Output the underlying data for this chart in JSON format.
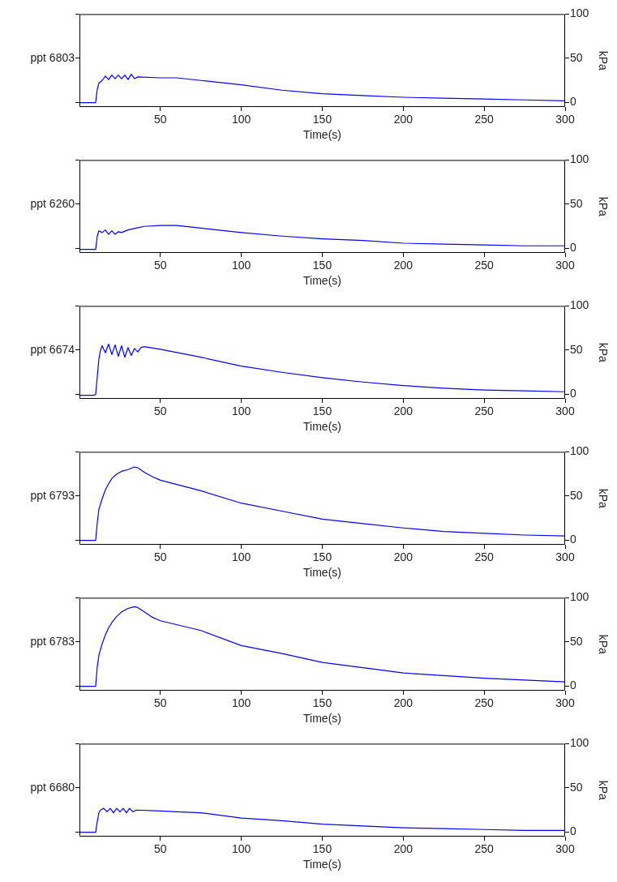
{
  "chart_data": [
    {
      "type": "line",
      "ylabel": "ppt 6803",
      "y2label": "kPa",
      "xlabel": "Time(s)",
      "xlim": [
        0,
        300
      ],
      "xticks": [
        50,
        100,
        150,
        200,
        250,
        300
      ],
      "y2lim": [
        -5,
        100
      ],
      "y2ticks": [
        0,
        50,
        100
      ],
      "marker": "none",
      "x": [
        0,
        9,
        10,
        11,
        12,
        14,
        16,
        18,
        20,
        22,
        24,
        26,
        28,
        30,
        32,
        34,
        36,
        50,
        60,
        75,
        100,
        125,
        150,
        175,
        200,
        225,
        250,
        275,
        300
      ],
      "series": [
        {
          "color": "#0000ff",
          "axis": "y2",
          "values": [
            0,
            0,
            0,
            15,
            22,
            25,
            30,
            26,
            31,
            27,
            31,
            27,
            31,
            26,
            32,
            27,
            29,
            28,
            28,
            25,
            20,
            14,
            10,
            8,
            6,
            5,
            4,
            3,
            2
          ]
        }
      ]
    },
    {
      "type": "line",
      "ylabel": "ppt 6260",
      "y2label": "kPa",
      "xlabel": "Time(s)",
      "xlim": [
        0,
        300
      ],
      "xticks": [
        50,
        100,
        150,
        200,
        250,
        300
      ],
      "y2lim": [
        -5,
        100
      ],
      "y2ticks": [
        0,
        50,
        100
      ],
      "marker": "none",
      "x": [
        0,
        9,
        10,
        11,
        12,
        14,
        16,
        18,
        20,
        22,
        24,
        26,
        30,
        35,
        40,
        50,
        60,
        75,
        100,
        125,
        150,
        175,
        200,
        225,
        250,
        275,
        300
      ],
      "series": [
        {
          "color": "#0000ff",
          "axis": "y2",
          "values": [
            -1,
            -1,
            -1,
            14,
            20,
            18,
            21,
            16,
            20,
            16,
            19,
            18,
            21,
            23,
            25,
            26,
            26,
            23,
            18,
            14,
            11,
            9,
            6,
            5,
            4,
            3,
            3
          ]
        }
      ]
    },
    {
      "type": "line",
      "ylabel": "ppt 6674",
      "y2label": "kPa",
      "xlabel": "Time(s)",
      "xlim": [
        0,
        300
      ],
      "xticks": [
        50,
        100,
        150,
        200,
        250,
        300
      ],
      "y2lim": [
        -5,
        100
      ],
      "y2ticks": [
        0,
        50,
        100
      ],
      "marker": "none",
      "x": [
        0,
        9,
        10,
        11,
        12,
        13,
        14,
        16,
        18,
        20,
        22,
        24,
        26,
        28,
        30,
        32,
        34,
        36,
        38,
        40,
        50,
        75,
        100,
        125,
        150,
        175,
        200,
        225,
        250,
        275,
        300
      ],
      "series": [
        {
          "color": "#0000ff",
          "axis": "y2",
          "values": [
            -1,
            -1,
            0,
            20,
            40,
            50,
            55,
            47,
            57,
            45,
            56,
            43,
            55,
            42,
            53,
            44,
            52,
            48,
            53,
            54,
            51,
            42,
            32,
            25,
            19,
            14,
            10,
            7,
            5,
            4,
            3
          ]
        }
      ]
    },
    {
      "type": "line",
      "ylabel": "ppt 6793",
      "y2label": "kPa",
      "xlabel": "Time(s)",
      "xlim": [
        0,
        300
      ],
      "xticks": [
        50,
        100,
        150,
        200,
        250,
        300
      ],
      "y2lim": [
        -5,
        100
      ],
      "y2ticks": [
        0,
        50,
        100
      ],
      "marker": "none",
      "x": [
        0,
        9,
        10,
        11,
        12,
        14,
        16,
        18,
        20,
        23,
        26,
        30,
        34,
        36,
        40,
        45,
        50,
        75,
        100,
        125,
        150,
        175,
        200,
        225,
        250,
        275,
        300
      ],
      "series": [
        {
          "color": "#0000ff",
          "axis": "y2",
          "values": [
            0,
            0,
            0,
            20,
            35,
            47,
            57,
            64,
            70,
            75,
            78,
            80,
            83,
            82,
            77,
            72,
            68,
            56,
            42,
            33,
            24,
            19,
            14,
            10,
            8,
            6,
            5
          ]
        }
      ]
    },
    {
      "type": "line",
      "ylabel": "ppt 6783",
      "y2label": "kPa",
      "xlabel": "Time(s)",
      "xlim": [
        0,
        300
      ],
      "xticks": [
        50,
        100,
        150,
        200,
        250,
        300
      ],
      "y2lim": [
        -5,
        100
      ],
      "y2ticks": [
        0,
        50,
        100
      ],
      "marker": "none",
      "x": [
        0,
        9,
        10,
        11,
        12,
        14,
        16,
        18,
        20,
        23,
        26,
        30,
        34,
        36,
        40,
        45,
        50,
        75,
        100,
        125,
        150,
        175,
        200,
        225,
        250,
        275,
        300
      ],
      "series": [
        {
          "color": "#0000ff",
          "axis": "y2",
          "values": [
            0,
            0,
            0,
            22,
            35,
            48,
            58,
            66,
            72,
            79,
            84,
            88,
            90,
            89,
            84,
            78,
            74,
            63,
            46,
            37,
            27,
            21,
            15,
            12,
            9,
            7,
            5
          ]
        }
      ]
    },
    {
      "type": "line",
      "ylabel": "ppt 6680",
      "y2label": "kPa",
      "xlabel": "Time(s)",
      "xlim": [
        0,
        300
      ],
      "xticks": [
        50,
        100,
        150,
        200,
        250,
        300
      ],
      "y2lim": [
        -5,
        100
      ],
      "y2ticks": [
        0,
        50,
        100
      ],
      "marker": "none",
      "x": [
        0,
        9,
        10,
        11,
        12,
        13,
        15,
        17,
        19,
        21,
        23,
        25,
        27,
        29,
        31,
        33,
        35,
        50,
        60,
        75,
        100,
        125,
        150,
        175,
        200,
        225,
        250,
        275,
        300
      ],
      "series": [
        {
          "color": "#0000ff",
          "axis": "y2",
          "values": [
            0,
            0,
            0,
            12,
            22,
            25,
            27,
            23,
            27,
            22,
            27,
            23,
            27,
            22,
            27,
            23,
            25,
            24,
            23,
            22,
            16,
            13,
            9,
            7,
            5,
            4,
            3,
            2,
            2
          ]
        }
      ]
    }
  ]
}
